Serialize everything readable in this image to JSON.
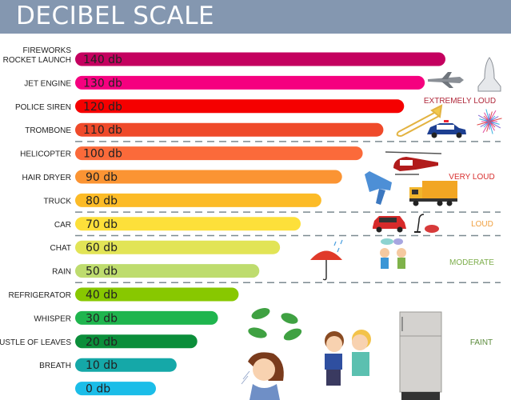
{
  "title": "DECIBEL SCALE",
  "chart_data": {
    "type": "bar",
    "orientation": "horizontal",
    "title": "DECIBEL SCALE",
    "categories": [
      [
        "FIREWORKS",
        "ROCKET LAUNCH"
      ],
      [
        "JET ENGINE"
      ],
      [
        "POLICE SIREN"
      ],
      [
        "TROMBONE"
      ],
      [
        "HELICOPTER"
      ],
      [
        "HAIR DRYER"
      ],
      [
        "TRUCK"
      ],
      [
        "CAR"
      ],
      [
        "CHAT"
      ],
      [
        "RAIN"
      ],
      [
        "REFRIGERATOR"
      ],
      [
        "WHISPER"
      ],
      [
        "RUSTLE OF LEAVES"
      ],
      [
        "BREATH"
      ],
      [
        ""
      ]
    ],
    "values": [
      140,
      130,
      120,
      110,
      100,
      90,
      80,
      70,
      60,
      50,
      40,
      30,
      20,
      10,
      0
    ],
    "data_labels": [
      "140 db",
      "130 db",
      "120 db",
      "110 db",
      "100 db",
      "90 db",
      "80 db",
      "70 db",
      "60 db",
      "50 db",
      "40 db",
      "30 db",
      "20 db",
      "10 db",
      "0 db"
    ],
    "colors": [
      "#c4005f",
      "#f5007f",
      "#f50000",
      "#ef4a2a",
      "#fb6a3a",
      "#fb9433",
      "#fcbb27",
      "#fde03a",
      "#e2e456",
      "#bedc6e",
      "#88c800",
      "#1fb54e",
      "#0b8e3a",
      "#15a8a8",
      "#1bbde8"
    ],
    "xlim": [
      0,
      140
    ],
    "grid": false,
    "zones": [
      {
        "label": "EXTREMELY LOUD",
        "color": "#b0283a",
        "range": [
          110,
          140
        ]
      },
      {
        "label": "VERY LOUD",
        "color": "#d8302f",
        "range": [
          80,
          100
        ]
      },
      {
        "label": "LOUD",
        "color": "#f0a040",
        "range": [
          70,
          70
        ]
      },
      {
        "label": "MODERATE",
        "color": "#7cad4a",
        "range": [
          50,
          60
        ]
      },
      {
        "label": "FAINT",
        "color": "#5a8a3a",
        "range": [
          0,
          40
        ]
      }
    ]
  },
  "illustrations": [
    "fighter-jet",
    "space-shuttle",
    "trombone",
    "police-car",
    "fireworks",
    "helicopter",
    "hair-dryer",
    "dump-truck",
    "car",
    "vacuum-cleaner",
    "umbrella-rain",
    "children-chatting",
    "leaves",
    "girl-breathing",
    "children-whispering",
    "refrigerator"
  ]
}
